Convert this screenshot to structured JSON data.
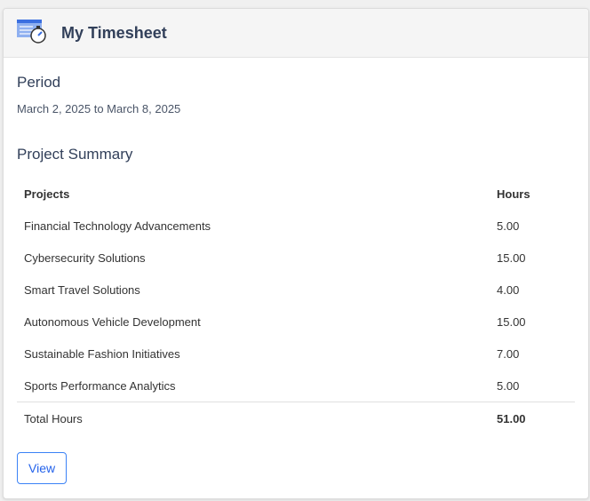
{
  "header": {
    "title": "My Timesheet",
    "icon": "timesheet-stopwatch-icon"
  },
  "period": {
    "heading": "Period",
    "range": "March 2, 2025 to March 8, 2025"
  },
  "summary": {
    "heading": "Project Summary",
    "columns": [
      "Projects",
      "Hours"
    ],
    "rows": [
      [
        "Financial Technology Advancements",
        "5.00"
      ],
      [
        "Cybersecurity Solutions",
        "15.00"
      ],
      [
        "Smart Travel Solutions",
        "4.00"
      ],
      [
        "Autonomous Vehicle Development",
        "15.00"
      ],
      [
        "Sustainable Fashion Initiatives",
        "7.00"
      ],
      [
        "Sports Performance Analytics",
        "5.00"
      ]
    ],
    "total_label": "Total Hours",
    "total_value": "51.00"
  },
  "actions": {
    "view_label": "View"
  },
  "colors": {
    "accent": "#2563eb",
    "heading": "#32405a"
  }
}
